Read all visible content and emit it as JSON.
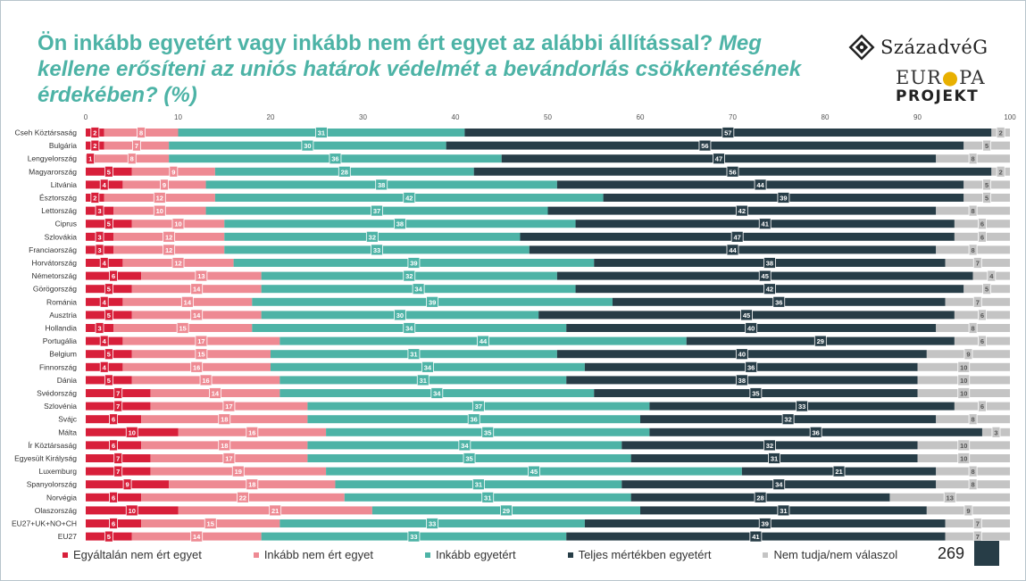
{
  "title": {
    "part1": "Ön inkább egyetért vagy inkább nem ért egyet az alábbi állítással?",
    "part2": "Meg kellene erősíteni az uniós határok védelmét a bevándorlás csökkentésének érdekében? (%)"
  },
  "logo": {
    "brand": "SzázadvéG",
    "line1a": "EUR",
    "line1b": "PA",
    "line2": "PROJEKT"
  },
  "page_number": "269",
  "colors": {
    "strongly_disagree": "#d81f3a",
    "rather_disagree": "#ee8a93",
    "rather_agree": "#4db3a6",
    "strongly_agree": "#273d47",
    "dont_know": "#c4c4c4"
  },
  "chart_data": {
    "type": "bar",
    "orientation": "horizontal",
    "stacked": true,
    "xlim": [
      0,
      100
    ],
    "xticks": [
      0,
      10,
      20,
      30,
      40,
      50,
      60,
      70,
      80,
      90,
      100
    ],
    "categories": [
      "Cseh Köztársaság",
      "Bulgária",
      "Lengyelország",
      "Magyarország",
      "Litvánia",
      "Észtország",
      "Lettország",
      "Ciprus",
      "Szlovákia",
      "Franciaország",
      "Horvátország",
      "Németország",
      "Görögország",
      "Románia",
      "Ausztria",
      "Hollandia",
      "Portugália",
      "Belgium",
      "Finnország",
      "Dánia",
      "Svédország",
      "Szlovénia",
      "Svájc",
      "Málta",
      "Ír Köztársaság",
      "Egyesült Királyság",
      "Luxemburg",
      "Spanyolország",
      "Norvégia",
      "Olaszország",
      "EU27+UK+NO+CH",
      "EU27"
    ],
    "series": [
      {
        "name": "Egyáltalán nem ért egyet",
        "values": [
          2,
          2,
          1,
          5,
          4,
          2,
          3,
          5,
          3,
          3,
          4,
          6,
          5,
          4,
          5,
          3,
          4,
          5,
          4,
          5,
          7,
          7,
          6,
          10,
          6,
          7,
          7,
          9,
          6,
          10,
          6,
          5
        ]
      },
      {
        "name": "Inkább nem ért egyet",
        "values": [
          8,
          7,
          8,
          9,
          9,
          12,
          10,
          10,
          12,
          12,
          12,
          13,
          14,
          14,
          14,
          15,
          17,
          15,
          16,
          16,
          14,
          17,
          18,
          16,
          18,
          17,
          19,
          18,
          22,
          21,
          15,
          14
        ]
      },
      {
        "name": "Inkább egyetért",
        "values": [
          31,
          30,
          36,
          28,
          38,
          42,
          37,
          38,
          32,
          33,
          39,
          32,
          34,
          39,
          30,
          34,
          44,
          31,
          34,
          31,
          34,
          37,
          36,
          35,
          34,
          35,
          45,
          31,
          31,
          29,
          33,
          33
        ]
      },
      {
        "name": "Teljes mértékben egyetért",
        "values": [
          57,
          56,
          47,
          56,
          44,
          39,
          42,
          41,
          47,
          44,
          38,
          45,
          42,
          36,
          45,
          40,
          29,
          40,
          36,
          38,
          35,
          33,
          32,
          36,
          32,
          31,
          21,
          34,
          28,
          31,
          39,
          41
        ]
      },
      {
        "name": "Nem tudja/nem válaszol",
        "values": [
          2,
          5,
          8,
          2,
          5,
          5,
          8,
          6,
          6,
          8,
          7,
          4,
          5,
          7,
          6,
          8,
          6,
          9,
          10,
          10,
          10,
          6,
          8,
          3,
          10,
          10,
          8,
          8,
          13,
          9,
          7,
          7
        ]
      }
    ]
  }
}
